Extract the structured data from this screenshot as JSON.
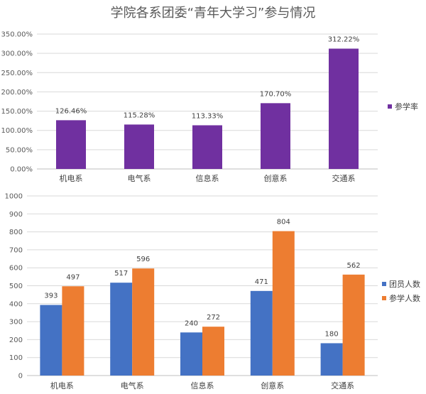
{
  "title": "学院各系团委“青年大学习”参与情况",
  "chart_data": [
    {
      "type": "bar",
      "categories": [
        "机电系",
        "电气系",
        "信息系",
        "创意系",
        "交通系"
      ],
      "series": [
        {
          "name": "参学率",
          "values": [
            126.46,
            115.28,
            113.33,
            170.7,
            312.22
          ],
          "labels": [
            "126.46%",
            "115.28%",
            "113.33%",
            "170.70%",
            "312.22%"
          ],
          "color": "#7030a0"
        }
      ],
      "yticks": [
        "0.00%",
        "50.00%",
        "100.00%",
        "150.00%",
        "200.00%",
        "250.00%",
        "300.00%",
        "350.00%"
      ],
      "ylim": [
        0,
        350
      ],
      "legend_position": "right"
    },
    {
      "type": "bar",
      "categories": [
        "机电系",
        "电气系",
        "信息系",
        "创意系",
        "交通系"
      ],
      "series": [
        {
          "name": "团员人数",
          "values": [
            393,
            517,
            240,
            471,
            180
          ],
          "labels": [
            "393",
            "517",
            "240",
            "471",
            "180"
          ],
          "color": "#4472c4"
        },
        {
          "name": "参学人数",
          "values": [
            497,
            596,
            272,
            804,
            562
          ],
          "labels": [
            "497",
            "596",
            "272",
            "804",
            "562"
          ],
          "color": "#ed7d31"
        }
      ],
      "yticks": [
        "0",
        "100",
        "200",
        "300",
        "400",
        "500",
        "600",
        "700",
        "800",
        "900",
        "1000"
      ],
      "ylim": [
        0,
        1000
      ],
      "legend_position": "right"
    }
  ]
}
